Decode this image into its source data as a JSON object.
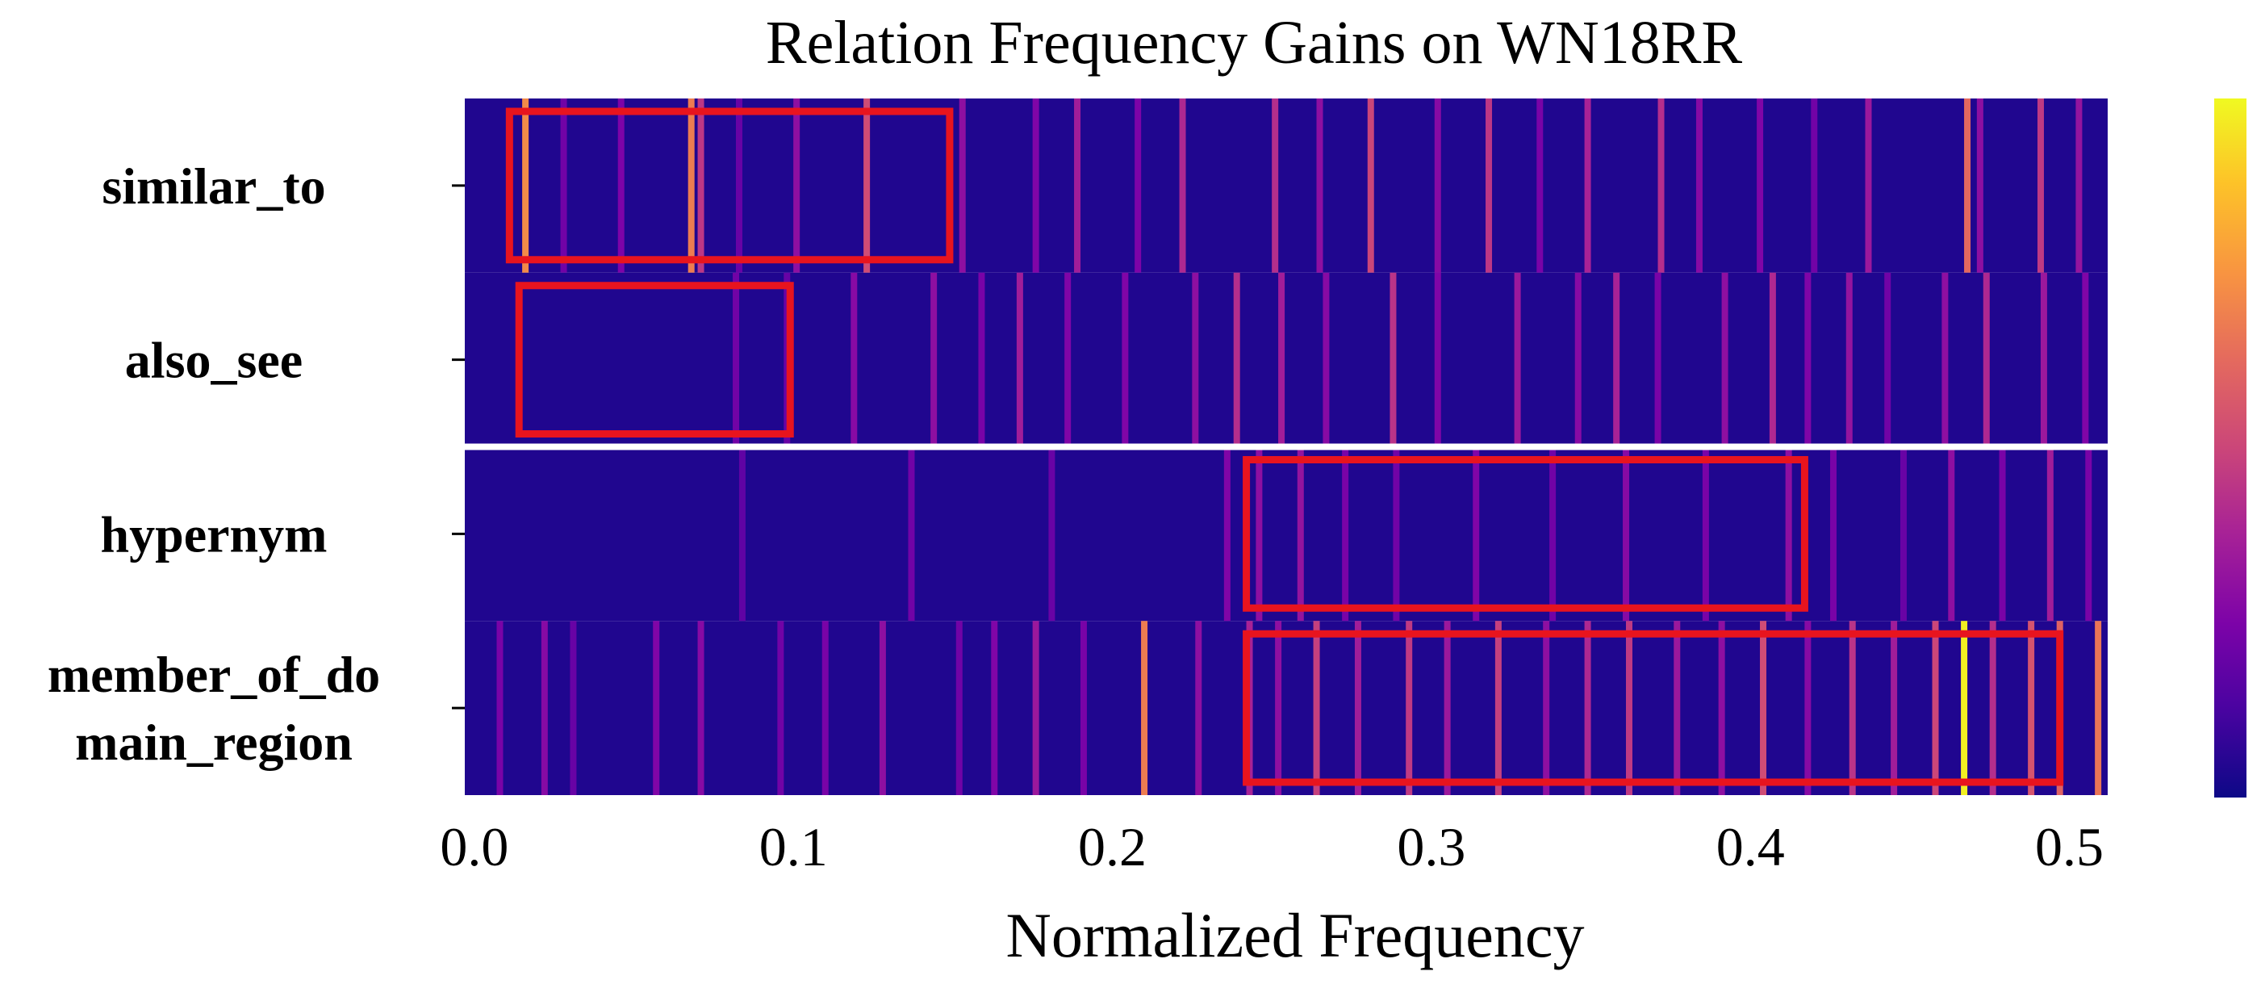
{
  "chart_data": {
    "type": "heatmap",
    "title": "Relation Frequency Gains on WN18RR",
    "xlabel": "Normalized Frequency",
    "xlim": [
      -0.003,
      0.512
    ],
    "x_ticks": [
      {
        "value": 0.0,
        "label": "0.0"
      },
      {
        "value": 0.1,
        "label": "0.1"
      },
      {
        "value": 0.2,
        "label": "0.2"
      },
      {
        "value": 0.3,
        "label": "0.3"
      },
      {
        "value": 0.4,
        "label": "0.4"
      },
      {
        "value": 0.5,
        "label": "0.5"
      }
    ],
    "rows": [
      {
        "key": "similar_to",
        "label_lines": [
          "similar_to"
        ]
      },
      {
        "key": "also_see",
        "label_lines": [
          "also_see"
        ]
      },
      {
        "key": "hypernym",
        "label_lines": [
          "hypernym"
        ]
      },
      {
        "key": "member_of_domain_region",
        "label_lines": [
          "member_of_do",
          "main_region"
        ]
      }
    ],
    "group_separator_after_row": 1,
    "colormap": "plasma",
    "colorbar": true,
    "base_intensity": 0.04,
    "highlights": [
      {
        "row": "similar_to",
        "x": [
          0.011,
          0.142
        ],
        "values": [
          [
            0.016,
            0.72
          ],
          [
            0.068,
            0.68
          ],
          [
            0.071,
            0.45
          ],
          [
            0.123,
            0.52
          ],
          [
            0.028,
            0.22
          ],
          [
            0.046,
            0.25
          ],
          [
            0.083,
            0.2
          ],
          [
            0.101,
            0.3
          ]
        ]
      },
      {
        "row": "similar_to",
        "x": [
          0.143,
          0.51
        ],
        "values": [
          [
            0.153,
            0.3
          ],
          [
            0.176,
            0.26
          ],
          [
            0.189,
            0.36
          ],
          [
            0.208,
            0.25
          ],
          [
            0.222,
            0.4
          ],
          [
            0.251,
            0.42
          ],
          [
            0.265,
            0.3
          ],
          [
            0.281,
            0.5
          ],
          [
            0.302,
            0.28
          ],
          [
            0.318,
            0.45
          ],
          [
            0.334,
            0.24
          ],
          [
            0.349,
            0.38
          ],
          [
            0.372,
            0.42
          ],
          [
            0.384,
            0.28
          ],
          [
            0.403,
            0.26
          ],
          [
            0.42,
            0.22
          ],
          [
            0.437,
            0.34
          ],
          [
            0.468,
            0.62
          ],
          [
            0.472,
            0.3
          ],
          [
            0.491,
            0.46
          ],
          [
            0.503,
            0.32
          ]
        ]
      },
      {
        "row": "also_see",
        "x": [
          0.0,
          0.51
        ],
        "values": [
          [
            0.082,
            0.22
          ],
          [
            0.098,
            0.2
          ],
          [
            0.119,
            0.28
          ],
          [
            0.144,
            0.3
          ],
          [
            0.159,
            0.24
          ],
          [
            0.171,
            0.36
          ],
          [
            0.186,
            0.26
          ],
          [
            0.204,
            0.26
          ],
          [
            0.226,
            0.3
          ],
          [
            0.239,
            0.42
          ],
          [
            0.253,
            0.36
          ],
          [
            0.267,
            0.28
          ],
          [
            0.288,
            0.44
          ],
          [
            0.302,
            0.26
          ],
          [
            0.327,
            0.34
          ],
          [
            0.346,
            0.28
          ],
          [
            0.358,
            0.38
          ],
          [
            0.371,
            0.24
          ],
          [
            0.392,
            0.3
          ],
          [
            0.407,
            0.4
          ],
          [
            0.418,
            0.26
          ],
          [
            0.431,
            0.32
          ],
          [
            0.443,
            0.22
          ],
          [
            0.461,
            0.3
          ],
          [
            0.474,
            0.4
          ],
          [
            0.492,
            0.34
          ],
          [
            0.505,
            0.26
          ]
        ]
      },
      {
        "row": "hypernym",
        "x": [
          0.0,
          0.51
        ],
        "values": [
          [
            0.084,
            0.18
          ],
          [
            0.137,
            0.22
          ],
          [
            0.181,
            0.2
          ],
          [
            0.236,
            0.26
          ],
          [
            0.246,
            0.3
          ],
          [
            0.259,
            0.32
          ],
          [
            0.273,
            0.24
          ],
          [
            0.289,
            0.22
          ],
          [
            0.314,
            0.26
          ],
          [
            0.338,
            0.22
          ],
          [
            0.361,
            0.28
          ],
          [
            0.386,
            0.24
          ],
          [
            0.412,
            0.3
          ],
          [
            0.426,
            0.24
          ],
          [
            0.448,
            0.2
          ],
          [
            0.463,
            0.3
          ],
          [
            0.479,
            0.24
          ],
          [
            0.494,
            0.36
          ],
          [
            0.506,
            0.24
          ]
        ]
      },
      {
        "row": "member_of_domain_region",
        "x": [
          0.0,
          0.51
        ],
        "values": [
          [
            0.008,
            0.24
          ],
          [
            0.022,
            0.28
          ],
          [
            0.031,
            0.2
          ],
          [
            0.057,
            0.26
          ],
          [
            0.071,
            0.28
          ],
          [
            0.096,
            0.22
          ],
          [
            0.11,
            0.24
          ],
          [
            0.128,
            0.3
          ],
          [
            0.152,
            0.22
          ],
          [
            0.163,
            0.26
          ],
          [
            0.176,
            0.34
          ],
          [
            0.191,
            0.24
          ],
          [
            0.21,
            0.68
          ],
          [
            0.227,
            0.3
          ],
          [
            0.243,
            0.38
          ],
          [
            0.252,
            0.3
          ],
          [
            0.264,
            0.48
          ],
          [
            0.277,
            0.36
          ],
          [
            0.293,
            0.46
          ],
          [
            0.305,
            0.34
          ],
          [
            0.321,
            0.48
          ],
          [
            0.336,
            0.3
          ],
          [
            0.349,
            0.4
          ],
          [
            0.362,
            0.46
          ],
          [
            0.377,
            0.34
          ],
          [
            0.391,
            0.3
          ],
          [
            0.404,
            0.52
          ],
          [
            0.418,
            0.28
          ],
          [
            0.432,
            0.44
          ],
          [
            0.445,
            0.36
          ],
          [
            0.458,
            0.5
          ],
          [
            0.467,
            0.98
          ],
          [
            0.476,
            0.42
          ],
          [
            0.488,
            0.55
          ],
          [
            0.497,
            0.6
          ],
          [
            0.509,
            0.66
          ]
        ]
      }
    ],
    "boxes": [
      {
        "row": "similar_to",
        "x": [
          0.011,
          0.149
        ]
      },
      {
        "row": "also_see",
        "x": [
          0.014,
          0.099
        ]
      },
      {
        "row": "hypernym",
        "x": [
          0.242,
          0.417
        ]
      },
      {
        "row": "member_of_domain_region",
        "x": [
          0.242,
          0.497
        ]
      }
    ],
    "box_color": "#e8141e",
    "separator_color": "#ffffff"
  }
}
